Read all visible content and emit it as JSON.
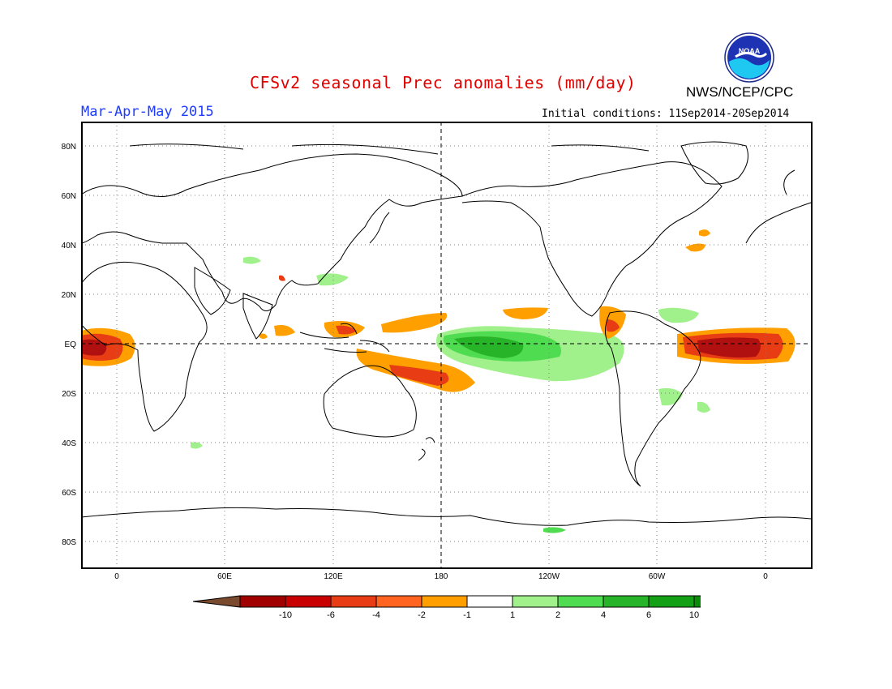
{
  "title": "CFSv2 seasonal Prec anomalies (mm/day)",
  "agency": "NWS/NCEP/CPC",
  "logo_text": "NOAA",
  "season": "Mar-Apr-May 2015",
  "initial_conditions": "Initial conditions: 11Sep2014-20Sep2014",
  "map": {
    "lat_labels": [
      "80N",
      "60N",
      "40N",
      "20N",
      "EQ",
      "20S",
      "40S",
      "60S",
      "80S"
    ],
    "lon_labels": [
      "0",
      "60E",
      "120E",
      "180",
      "120W",
      "60W",
      "0"
    ],
    "gridlines": "dotted",
    "reference_lines": [
      "EQ",
      "180"
    ]
  },
  "colorbar": {
    "labels": [
      "-10",
      "-6",
      "-4",
      "-2",
      "-1",
      "1",
      "2",
      "4",
      "6",
      "10"
    ],
    "colors": [
      "#7a4a2e",
      "#a00000",
      "#c80000",
      "#e83c14",
      "#ff6420",
      "#ffa000",
      "#ffffff",
      "#a0f08c",
      "#50dc50",
      "#28b428",
      "#14a014",
      "#0a8c0a",
      "#3c78ff"
    ]
  },
  "colors": {
    "title": "#e00000",
    "season": "#1e3cff",
    "dry_strong": "#b01010",
    "dry_mid": "#e83c14",
    "dry_weak": "#ffa000",
    "wet_weak": "#a0f08c",
    "wet_mid": "#50dc50",
    "wet_strong": "#28b428"
  }
}
